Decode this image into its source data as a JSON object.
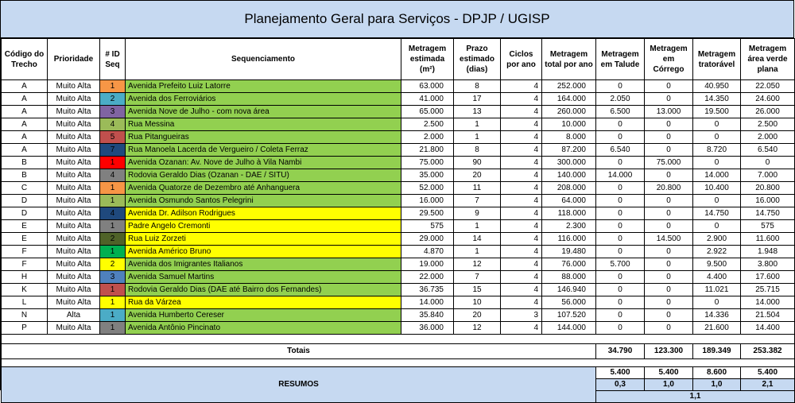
{
  "title": "Planejamento Geral para Serviços - DPJP / UGISP",
  "headers": {
    "codigo": "Código do Trecho",
    "prioridade": "Prioridade",
    "id": "# ID Seq",
    "seq": "Sequenciamento",
    "met_est": "Metragem estimada (m²)",
    "prazo": "Prazo estimado (dias)",
    "ciclos": "Ciclos por ano",
    "met_total": "Metragem total por ano",
    "talude": "Metragem em Talude",
    "corrego": "Metragem em Córrego",
    "trator": "Metragem tratorável",
    "verde": "Metragem área verde plana"
  },
  "colors": {
    "green": "#92d050",
    "yellow": "#ffff00",
    "header_blue": "#c6d9f1",
    "id_orange": "#f79646",
    "id_blue": "#4bacc6",
    "id_purple": "#8064a2",
    "id_olive": "#9bbb59",
    "id_red": "#c0504d",
    "id_navy": "#1f497d",
    "id_bright_red": "#ff0000",
    "id_gray": "#808080",
    "id_dark_olive": "#4f6228",
    "id_green": "#00b050"
  },
  "rows": [
    {
      "codigo": "A",
      "prioridade": "Muito Alta",
      "id": "1",
      "id_color": "#f79646",
      "seq": "Avenida Prefeito Luiz Latorre",
      "seq_color": "#92d050",
      "met_est": "63.000",
      "prazo": "8",
      "ciclos": "4",
      "met_total": "252.000",
      "talude": "0",
      "corrego": "0",
      "trator": "40.950",
      "verde": "22.050"
    },
    {
      "codigo": "A",
      "prioridade": "Muito Alta",
      "id": "2",
      "id_color": "#4bacc6",
      "seq": "Avenida dos Ferroviários",
      "seq_color": "#92d050",
      "met_est": "41.000",
      "prazo": "17",
      "ciclos": "4",
      "met_total": "164.000",
      "talude": "2.050",
      "corrego": "0",
      "trator": "14.350",
      "verde": "24.600"
    },
    {
      "codigo": "A",
      "prioridade": "Muito Alta",
      "id": "3",
      "id_color": "#8064a2",
      "seq": "Avenida Nove de Julho - com nova área",
      "seq_color": "#92d050",
      "met_est": "65.000",
      "prazo": "13",
      "ciclos": "4",
      "met_total": "260.000",
      "talude": "6.500",
      "corrego": "13.000",
      "trator": "19.500",
      "verde": "26.000"
    },
    {
      "codigo": "A",
      "prioridade": "Muito Alta",
      "id": "4",
      "id_color": "#9bbb59",
      "seq": "Rua Messina",
      "seq_color": "#92d050",
      "met_est": "2.500",
      "prazo": "1",
      "ciclos": "4",
      "met_total": "10.000",
      "talude": "0",
      "corrego": "0",
      "trator": "0",
      "verde": "2.500"
    },
    {
      "codigo": "A",
      "prioridade": "Muito Alta",
      "id": "5",
      "id_color": "#c0504d",
      "seq": "Rua Pitangueiras",
      "seq_color": "#92d050",
      "met_est": "2.000",
      "prazo": "1",
      "ciclos": "4",
      "met_total": "8.000",
      "talude": "0",
      "corrego": "0",
      "trator": "0",
      "verde": "2.000"
    },
    {
      "codigo": "A",
      "prioridade": "Muito Alta",
      "id": "7",
      "id_color": "#1f497d",
      "seq": "Rua Manoela Lacerda de Vergueiro / Coleta Ferraz",
      "seq_color": "#92d050",
      "met_est": "21.800",
      "prazo": "8",
      "ciclos": "4",
      "met_total": "87.200",
      "talude": "6.540",
      "corrego": "0",
      "trator": "8.720",
      "verde": "6.540"
    },
    {
      "codigo": "B",
      "prioridade": "Muito Alta",
      "id": "1",
      "id_color": "#ff0000",
      "seq": "Avenida Ozanan: Av. Nove de Julho à Vila Nambi",
      "seq_color": "#92d050",
      "met_est": "75.000",
      "prazo": "90",
      "ciclos": "4",
      "met_total": "300.000",
      "talude": "0",
      "corrego": "75.000",
      "trator": "0",
      "verde": "0"
    },
    {
      "codigo": "B",
      "prioridade": "Muito Alta",
      "id": "4",
      "id_color": "#808080",
      "seq": "Rodovia Geraldo Dias (Ozanan - DAE / SITU)",
      "seq_color": "#92d050",
      "met_est": "35.000",
      "prazo": "20",
      "ciclos": "4",
      "met_total": "140.000",
      "talude": "14.000",
      "corrego": "0",
      "trator": "14.000",
      "verde": "7.000"
    },
    {
      "codigo": "C",
      "prioridade": "Muito Alta",
      "id": "1",
      "id_color": "#f79646",
      "seq": "Avenida Quatorze de Dezembro até Anhanguera",
      "seq_color": "#92d050",
      "met_est": "52.000",
      "prazo": "11",
      "ciclos": "4",
      "met_total": "208.000",
      "talude": "0",
      "corrego": "20.800",
      "trator": "10.400",
      "verde": "20.800"
    },
    {
      "codigo": "D",
      "prioridade": "Muito Alta",
      "id": "1",
      "id_color": "#9bbb59",
      "seq": "Avenida Osmundo Santos Pelegrini",
      "seq_color": "#92d050",
      "met_est": "16.000",
      "prazo": "7",
      "ciclos": "4",
      "met_total": "64.000",
      "talude": "0",
      "corrego": "0",
      "trator": "0",
      "verde": "16.000"
    },
    {
      "codigo": "D",
      "prioridade": "Muito Alta",
      "id": "4",
      "id_color": "#1f497d",
      "seq": "Avenida Dr. Adilson Rodrigues",
      "seq_color": "#ffff00",
      "met_est": "29.500",
      "prazo": "9",
      "ciclos": "4",
      "met_total": "118.000",
      "talude": "0",
      "corrego": "0",
      "trator": "14.750",
      "verde": "14.750"
    },
    {
      "codigo": "E",
      "prioridade": "Muito Alta",
      "id": "1",
      "id_color": "#808080",
      "seq": "Padre Angelo Cremonti",
      "seq_color": "#ffff00",
      "met_est": "575",
      "prazo": "1",
      "ciclos": "4",
      "met_total": "2.300",
      "talude": "0",
      "corrego": "0",
      "trator": "0",
      "verde": "575"
    },
    {
      "codigo": "E",
      "prioridade": "Muito Alta",
      "id": "2",
      "id_color": "#4f6228",
      "seq": "Rua Luiz Zorzeti",
      "seq_color": "#ffff00",
      "met_est": "29.000",
      "prazo": "14",
      "ciclos": "4",
      "met_total": "116.000",
      "talude": "0",
      "corrego": "14.500",
      "trator": "2.900",
      "verde": "11.600"
    },
    {
      "codigo": "F",
      "prioridade": "Muito Alta",
      "id": "1",
      "id_color": "#00b050",
      "seq": "Avenida Américo Bruno",
      "seq_color": "#ffff00",
      "met_est": "4.870",
      "prazo": "1",
      "ciclos": "4",
      "met_total": "19.480",
      "talude": "0",
      "corrego": "0",
      "trator": "2.922",
      "verde": "1.948"
    },
    {
      "codigo": "F",
      "prioridade": "Muito Alta",
      "id": "2",
      "id_color": "#ffff00",
      "seq": "Avenida dos Imigrantes Italianos",
      "seq_color": "#92d050",
      "met_est": "19.000",
      "prazo": "12",
      "ciclos": "4",
      "met_total": "76.000",
      "talude": "5.700",
      "corrego": "0",
      "trator": "9.500",
      "verde": "3.800"
    },
    {
      "codigo": "H",
      "prioridade": "Muito Alta",
      "id": "3",
      "id_color": "#4f81bd",
      "seq": "Avenida Samuel Martins",
      "seq_color": "#92d050",
      "met_est": "22.000",
      "prazo": "7",
      "ciclos": "4",
      "met_total": "88.000",
      "talude": "0",
      "corrego": "0",
      "trator": "4.400",
      "verde": "17.600"
    },
    {
      "codigo": "K",
      "prioridade": "Muito Alta",
      "id": "1",
      "id_color": "#c0504d",
      "seq": "Rodovia Geraldo Dias (DAE até Bairro dos Fernandes)",
      "seq_color": "#92d050",
      "met_est": "36.735",
      "prazo": "15",
      "ciclos": "4",
      "met_total": "146.940",
      "talude": "0",
      "corrego": "0",
      "trator": "11.021",
      "verde": "25.715"
    },
    {
      "codigo": "L",
      "prioridade": "Muito Alta",
      "id": "1",
      "id_color": "#ffff00",
      "seq": "Rua da Várzea",
      "seq_color": "#ffff00",
      "met_est": "14.000",
      "prazo": "10",
      "ciclos": "4",
      "met_total": "56.000",
      "talude": "0",
      "corrego": "0",
      "trator": "0",
      "verde": "14.000"
    },
    {
      "codigo": "N",
      "prioridade": "Alta",
      "id": "1",
      "id_color": "#4bacc6",
      "seq": "Avenida Humberto Cereser",
      "seq_color": "#92d050",
      "met_est": "35.840",
      "prazo": "20",
      "ciclos": "3",
      "met_total": "107.520",
      "talude": "0",
      "corrego": "0",
      "trator": "14.336",
      "verde": "21.504"
    },
    {
      "codigo": "P",
      "prioridade": "Muito Alta",
      "id": "1",
      "id_color": "#808080",
      "seq": "Avenida Antônio Pincinato",
      "seq_color": "#92d050",
      "met_est": "36.000",
      "prazo": "12",
      "ciclos": "4",
      "met_total": "144.000",
      "talude": "0",
      "corrego": "0",
      "trator": "21.600",
      "verde": "14.400"
    }
  ],
  "totals": {
    "label": "Totais",
    "talude": "34.790",
    "corrego": "123.300",
    "trator": "189.349",
    "verde": "253.382"
  },
  "resumos": {
    "label": "RESUMOS",
    "row1": [
      "5.400",
      "5.400",
      "8.600",
      "5.400"
    ],
    "row2": [
      "0,3",
      "1,0",
      "1,0",
      "2,1"
    ],
    "row3": "1,1"
  }
}
